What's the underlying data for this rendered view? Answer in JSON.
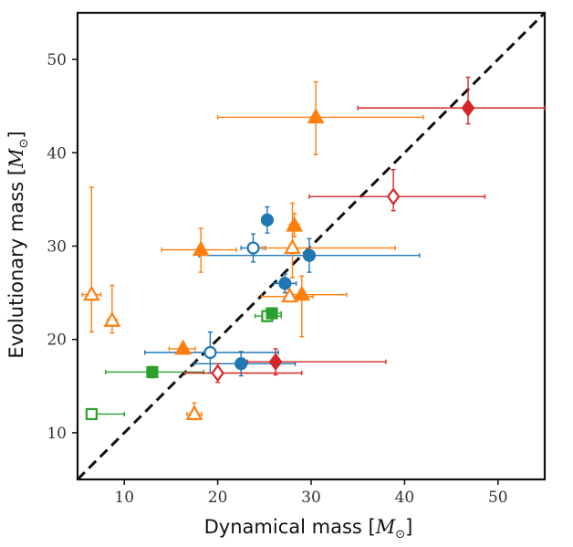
{
  "chart_data": {
    "type": "scatter",
    "title": "",
    "xlabel": "Dynamical mass",
    "ylabel": "Evolutionary mass",
    "unit": "M",
    "unit_subscript": "⊙",
    "xlim": [
      5,
      55
    ],
    "ylim": [
      5,
      55
    ],
    "xticks": [
      10,
      20,
      30,
      40,
      50
    ],
    "yticks": [
      10,
      20,
      30,
      40,
      50
    ],
    "one_to_one_line": true,
    "grid": false,
    "series": [
      {
        "name": "blue-circles",
        "color": "#1f77b4",
        "marker": "circle",
        "points": [
          {
            "x": 25.3,
            "y": 32.8,
            "xerr": [
              0.6,
              0.6
            ],
            "yerr": [
              1.4,
              1.4
            ],
            "filled": true
          },
          {
            "x": 23.8,
            "y": 29.8,
            "xerr": [
              1.3,
              1.3
            ],
            "yerr": [
              1.5,
              1.5
            ],
            "filled": false
          },
          {
            "x": 29.8,
            "y": 29.0,
            "xerr": [
              11.8,
              11.8
            ],
            "yerr": [
              1.8,
              1.8
            ],
            "filled": true
          },
          {
            "x": 27.2,
            "y": 26.0,
            "xerr": [
              1.2,
              1.2
            ],
            "yerr": [
              1.0,
              1.0
            ],
            "filled": true
          },
          {
            "x": 19.2,
            "y": 18.6,
            "xerr": [
              7.0,
              7.3
            ],
            "yerr": [
              2.2,
              2.2
            ],
            "filled": false
          },
          {
            "x": 22.5,
            "y": 17.4,
            "xerr": [
              5.0,
              5.8
            ],
            "yerr": [
              1.3,
              1.3
            ],
            "filled": true
          }
        ]
      },
      {
        "name": "orange-triangles",
        "color": "#ff7f0e",
        "marker": "triangle",
        "points": [
          {
            "x": 30.5,
            "y": 43.8,
            "xerr": [
              10.5,
              11.5
            ],
            "yerr": [
              4.0,
              3.8
            ],
            "filled": true
          },
          {
            "x": 28.2,
            "y": 32.2,
            "xerr": [
              0.5,
              0.5
            ],
            "yerr": [
              1.2,
              1.3
            ],
            "filled": true
          },
          {
            "x": 18.2,
            "y": 29.6,
            "xerr": [
              4.2,
              3.8
            ],
            "yerr": [
              2.4,
              2.3
            ],
            "filled": true
          },
          {
            "x": 28.0,
            "y": 29.8,
            "xerr": [
              3.2,
              11.0
            ],
            "yerr": [
              3.2,
              4.8
            ],
            "filled": false
          },
          {
            "x": 6.5,
            "y": 24.8,
            "xerr": [
              1.0,
              1.0
            ],
            "yerr": [
              4.0,
              11.5
            ],
            "filled": false
          },
          {
            "x": 8.7,
            "y": 22.0,
            "xerr": [
              0.5,
              0.5
            ],
            "yerr": [
              1.3,
              3.8
            ],
            "filled": false
          },
          {
            "x": 29.0,
            "y": 24.8,
            "xerr": [
              1.5,
              4.8
            ],
            "yerr": [
              4.5,
              2.0
            ],
            "filled": true
          },
          {
            "x": 27.7,
            "y": 24.6,
            "xerr": [
              3.0,
              2.5
            ],
            "yerr": [
              0.5,
              0.5
            ],
            "filled": false
          },
          {
            "x": 16.3,
            "y": 19.0,
            "xerr": [
              1.5,
              1.3
            ],
            "yerr": [
              0.4,
              0.4
            ],
            "filled": true
          },
          {
            "x": 17.5,
            "y": 12.0,
            "xerr": [
              0.8,
              0.8
            ],
            "yerr": [
              0.6,
              1.2
            ],
            "filled": false
          }
        ]
      },
      {
        "name": "green-squares",
        "color": "#2ca02c",
        "marker": "square",
        "points": [
          {
            "x": 25.3,
            "y": 22.5,
            "xerr": [
              1.3,
              1.5
            ],
            "yerr": [
              0.6,
              0.6
            ],
            "filled": false
          },
          {
            "x": 25.8,
            "y": 22.8,
            "xerr": [
              1.0,
              1.0
            ],
            "yerr": [
              0.5,
              0.5
            ],
            "filled": true
          },
          {
            "x": 13.0,
            "y": 16.5,
            "xerr": [
              5.0,
              5.5
            ],
            "yerr": [
              0.6,
              0.6
            ],
            "filled": true
          },
          {
            "x": 6.5,
            "y": 12.0,
            "xerr": [
              0.5,
              3.5
            ],
            "yerr": [
              0.5,
              0.5
            ],
            "filled": false
          }
        ]
      },
      {
        "name": "red-diamonds",
        "color": "#d62728",
        "marker": "diamond",
        "points": [
          {
            "x": 46.8,
            "y": 44.8,
            "xerr": [
              11.8,
              8.2
            ],
            "yerr": [
              1.7,
              3.3
            ],
            "filled": true
          },
          {
            "x": 38.8,
            "y": 35.3,
            "xerr": [
              9.0,
              9.8
            ],
            "yerr": [
              1.5,
              2.9
            ],
            "filled": false
          },
          {
            "x": 26.2,
            "y": 17.6,
            "xerr": [
              3.0,
              11.8
            ],
            "yerr": [
              1.4,
              1.4
            ],
            "filled": true
          },
          {
            "x": 20.0,
            "y": 16.4,
            "xerr": [
              3.5,
              9.0
            ],
            "yerr": [
              1.0,
              1.0
            ],
            "filled": false
          }
        ]
      }
    ]
  }
}
